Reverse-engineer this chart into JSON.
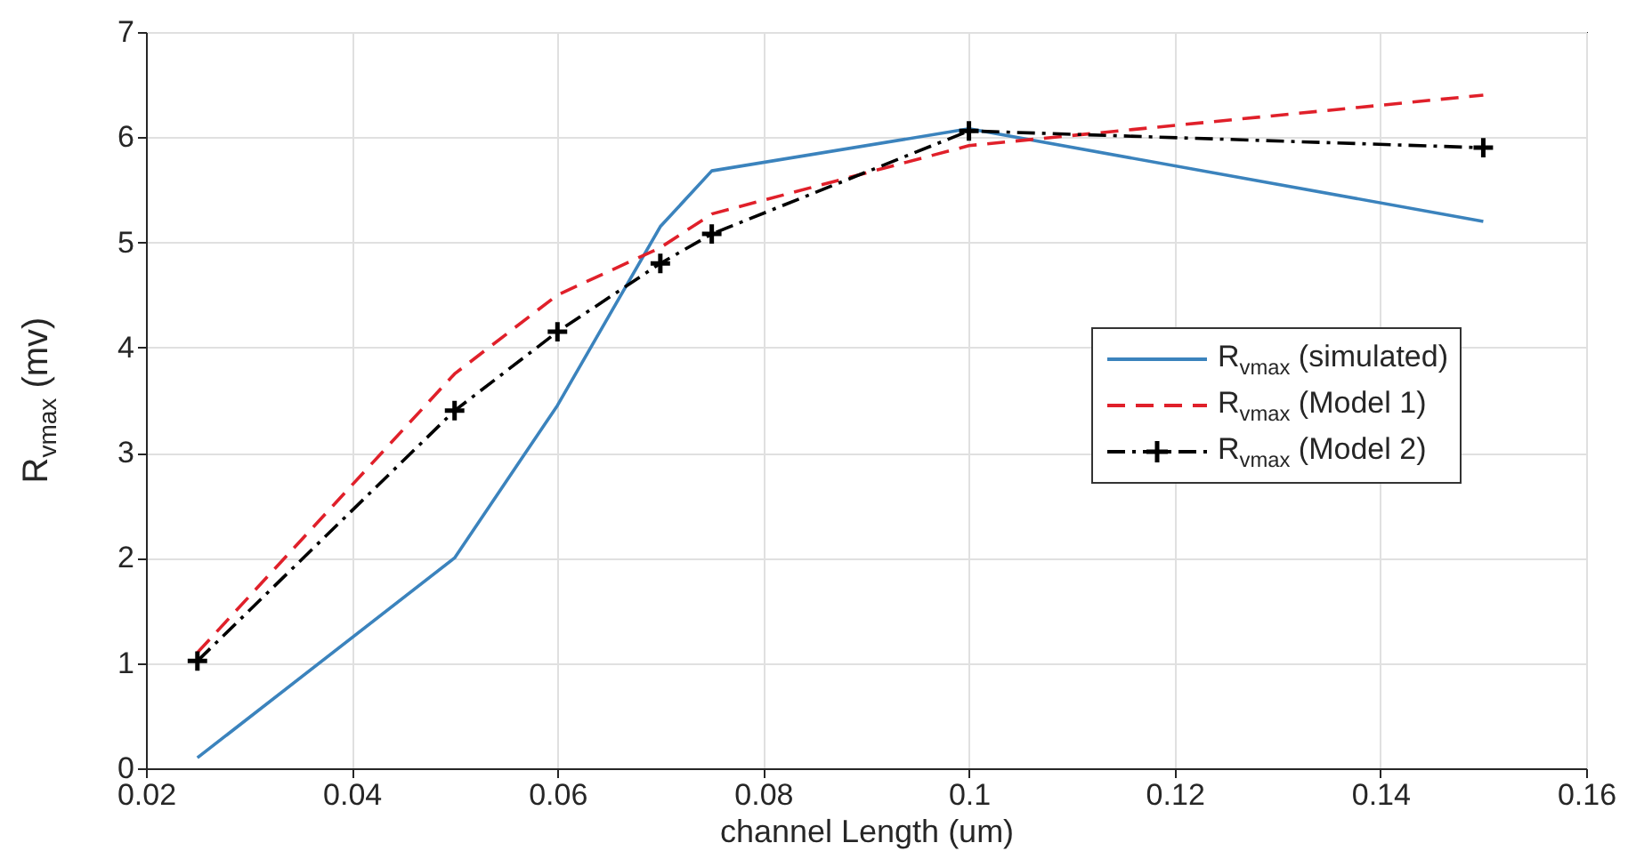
{
  "chart_data": {
    "type": "line",
    "xlabel": "channel Length (um)",
    "ylabel": "R$_{vmax}$ (mv)",
    "x": [
      0.025,
      0.05,
      0.06,
      0.07,
      0.075,
      0.1,
      0.15
    ],
    "series": [
      {
        "name": "R$_{vmax}$ (simulated)",
        "color": "#3b83bd",
        "line_style": "solid",
        "marker": "none",
        "values": [
          0.1,
          2.0,
          3.45,
          5.15,
          5.68,
          6.08,
          5.2
        ]
      },
      {
        "name": "R$_{vmax}$ (Model 1)",
        "color": "#e0202a",
        "line_style": "dashed",
        "marker": "none",
        "values": [
          1.1,
          3.75,
          4.5,
          4.95,
          5.27,
          5.92,
          6.4
        ]
      },
      {
        "name": "R$_{vmax}$ (Model 2)",
        "color": "#000000",
        "line_style": "dashdot",
        "marker": "cross",
        "values": [
          1.02,
          3.4,
          4.15,
          4.8,
          5.08,
          6.06,
          5.9
        ]
      }
    ],
    "xlim": [
      0.02,
      0.16
    ],
    "xticks": [
      0.02,
      0.04,
      0.06,
      0.08,
      0.1,
      0.12,
      0.14,
      0.16
    ],
    "ylim": [
      0,
      7
    ],
    "yticks": [
      0,
      1,
      2,
      3,
      4,
      5,
      6,
      7
    ],
    "grid": true,
    "legend": "right"
  }
}
